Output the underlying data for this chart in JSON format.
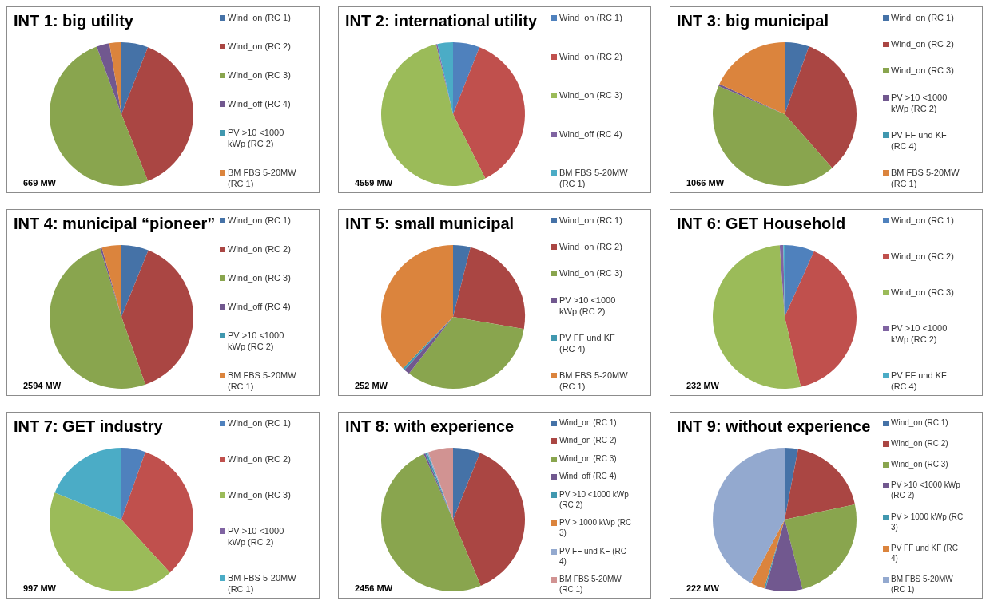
{
  "chart_data": [
    {
      "type": "pie",
      "title": "INT 1: big utility",
      "categories": [
        "Wind_on (RC 1)",
        "Wind_on (RC 2)",
        "Wind_on (RC 3)",
        "Wind_off (RC 4)",
        "PV >10 <1000 kWp (RC 2)",
        "BM FBS 5-20MW (RC 1)"
      ],
      "values": [
        6,
        38,
        50.4,
        2.9,
        0,
        2.7
      ],
      "colors": [
        "#4572a7",
        "#aa4643",
        "#89a54e",
        "#71588f",
        "#4198af",
        "#db843d"
      ],
      "legend": "right",
      "annotations": [
        "669 MW"
      ]
    },
    {
      "type": "pie",
      "title": "INT 2: international utility",
      "categories": [
        "Wind_on (RC 1)",
        "Wind_on (RC 2)",
        "Wind_on (RC 3)",
        "Wind_off (RC 4)",
        "BM FBS 5-20MW (RC 1)"
      ],
      "values": [
        6,
        36.6,
        53.6,
        0.3,
        3.5
      ],
      "colors": [
        "#4f81bd",
        "#c0504d",
        "#9bbb59",
        "#8064a2",
        "#4bacc6"
      ],
      "legend": "right",
      "annotations": [
        "4559 MW"
      ]
    },
    {
      "type": "pie",
      "title": "INT 3: big municipal",
      "categories": [
        "Wind_on (RC 1)",
        "Wind_on (RC 2)",
        "Wind_on (RC 3)",
        "PV >10 <1000 kWp (RC 2)",
        "PV FF und KF (RC 4)",
        "BM FBS 5-20MW (RC 1)"
      ],
      "values": [
        5.5,
        33,
        42.9,
        0.5,
        0,
        18.1
      ],
      "colors": [
        "#4572a7",
        "#aa4643",
        "#89a54e",
        "#71588f",
        "#4198af",
        "#db843d"
      ],
      "legend": "right",
      "annotations": [
        "1066 MW"
      ]
    },
    {
      "type": "pie",
      "title": "INT 4: municipal  “pioneer”",
      "categories": [
        "Wind_on (RC 1)",
        "Wind_on (RC 2)",
        "Wind_on (RC 3)",
        "Wind_off (RC 4)",
        "PV >10 <1000 kWp (RC 2)",
        "BM FBS 5-20MW (RC 1)"
      ],
      "values": [
        6.1,
        38.5,
        50.6,
        0.4,
        0,
        4.4
      ],
      "colors": [
        "#4572a7",
        "#aa4643",
        "#89a54e",
        "#71588f",
        "#4198af",
        "#db843d"
      ],
      "legend": "right",
      "annotations": [
        "2594 MW"
      ]
    },
    {
      "type": "pie",
      "title": "INT 5: small municipal",
      "categories": [
        "Wind_on (RC 1)",
        "Wind_on (RC 2)",
        "Wind_on (RC 3)",
        "PV >10 <1000 kWp (RC 2)",
        "PV FF und KF (RC 4)",
        "BM FBS 5-20MW (RC 1)"
      ],
      "values": [
        3.9,
        23.8,
        32.8,
        1.3,
        0.5,
        37.7
      ],
      "colors": [
        "#4572a7",
        "#aa4643",
        "#89a54e",
        "#71588f",
        "#4198af",
        "#db843d"
      ],
      "legend": "right",
      "annotations": [
        "252 MW"
      ]
    },
    {
      "type": "pie",
      "title": "INT 6: GET Household",
      "categories": [
        "Wind_on (RC 1)",
        "Wind_on (RC 2)",
        "Wind_on (RC 3)",
        "PV >10 <1000 kWp (RC 2)",
        "PV FF und KF (RC 4)"
      ],
      "values": [
        6.7,
        39.7,
        52.5,
        0.8,
        0.3
      ],
      "colors": [
        "#4f81bd",
        "#c0504d",
        "#9bbb59",
        "#8064a2",
        "#4bacc6"
      ],
      "legend": "right",
      "annotations": [
        "232 MW"
      ]
    },
    {
      "type": "pie",
      "title": "INT 7: GET industry",
      "categories": [
        "Wind_on (RC 1)",
        "Wind_on (RC 2)",
        "Wind_on (RC 3)",
        "PV >10 <1000 kWp (RC 2)",
        "BM FBS 5-20MW (RC 1)"
      ],
      "values": [
        5.4,
        32.8,
        42.9,
        0,
        18.9
      ],
      "colors": [
        "#4f81bd",
        "#c0504d",
        "#9bbb59",
        "#8064a2",
        "#4bacc6"
      ],
      "legend": "right",
      "annotations": [
        "997 MW"
      ]
    },
    {
      "type": "pie",
      "title": "INT 8: with experience",
      "categories": [
        "Wind_on (RC 1)",
        "Wind_on (RC 2)",
        "Wind_on (RC 3)",
        "Wind_off (RC 4)",
        "PV >10 <1000 kWp (RC 2)",
        "PV > 1000 kWp (RC 3)",
        "PV FF und KF (RC 4)",
        "BM FBS 5-20MW (RC 1)"
      ],
      "values": [
        6.1,
        37.6,
        49.6,
        0.4,
        0.4,
        0,
        0.3,
        5.6
      ],
      "colors": [
        "#4572a7",
        "#aa4643",
        "#89a54e",
        "#71588f",
        "#4198af",
        "#db843d",
        "#93a9cf",
        "#d19392"
      ],
      "legend": "right",
      "annotations": [
        "2456 MW"
      ]
    },
    {
      "type": "pie",
      "title": "INT 9: without experience",
      "categories": [
        "Wind_on (RC 1)",
        "Wind_on (RC 2)",
        "Wind_on (RC 3)",
        "PV >10 <1000 kWp (RC 2)",
        "PV > 1000 kWp (RC 3)",
        "PV FF und KF (RC 4)",
        "BM FBS 5-20MW (RC 1)"
      ],
      "values": [
        3,
        18.6,
        24.4,
        8.3,
        0.3,
        3.2,
        42.2
      ],
      "colors": [
        "#4572a7",
        "#aa4643",
        "#89a54e",
        "#71588f",
        "#4198af",
        "#db843d",
        "#93a9cf"
      ],
      "legend": "right",
      "annotations": [
        "222 MW"
      ]
    }
  ]
}
